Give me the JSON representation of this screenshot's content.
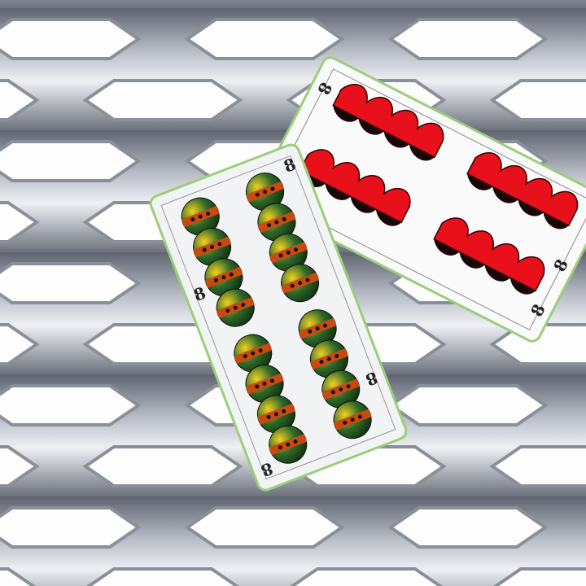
{
  "cards": [
    {
      "rank": "8"
    },
    {
      "rank": "8"
    }
  ]
}
